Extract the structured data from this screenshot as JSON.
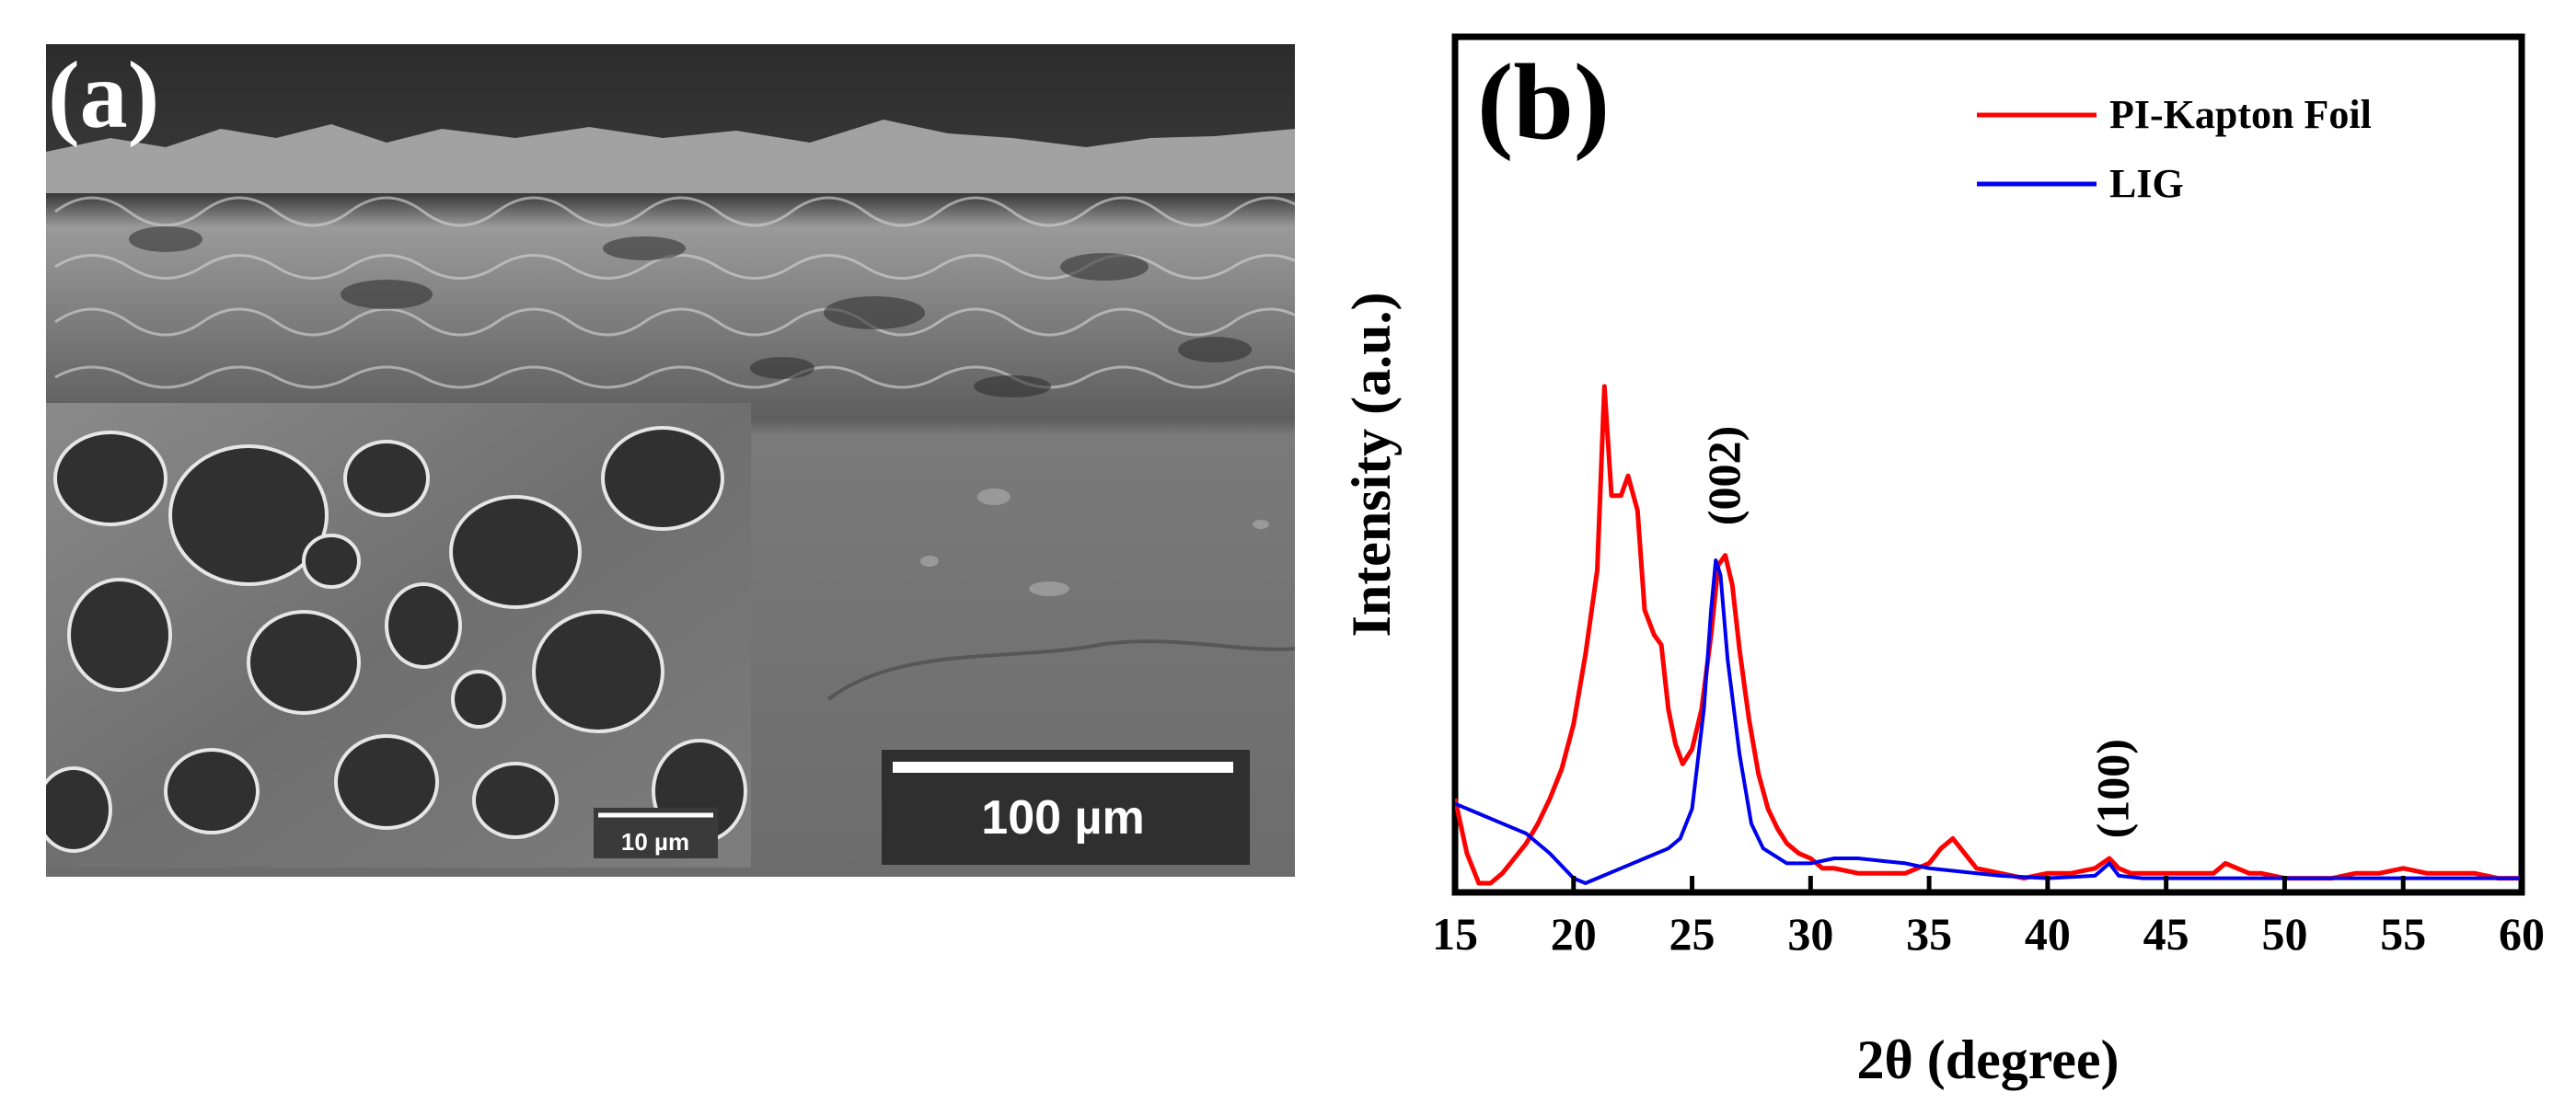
{
  "panel_a": {
    "label": "(a)",
    "scale_bar_main": "100 µm",
    "scale_bar_inset": "10 µm"
  },
  "chart_data": {
    "type": "line",
    "panel_label": "(b)",
    "title": "",
    "xlabel": "2θ (degree)",
    "ylabel": "Intensity (a.u.)",
    "xlim": [
      15,
      60
    ],
    "ylim": [
      0,
      1
    ],
    "xticks": [
      15,
      20,
      25,
      30,
      35,
      40,
      45,
      50,
      55,
      60
    ],
    "yticks": [],
    "grid": false,
    "legend": "top-right",
    "series": [
      {
        "name": "PI-Kapton Foil",
        "color": "#ff0000",
        "x": [
          15,
          15.5,
          16,
          16.5,
          17,
          17.5,
          18,
          18.5,
          19,
          19.5,
          20,
          20.5,
          21,
          21.3,
          21.6,
          22,
          22.3,
          22.7,
          23,
          23.4,
          23.7,
          24,
          24.3,
          24.6,
          25,
          25.4,
          25.8,
          26.1,
          26.4,
          26.7,
          27,
          27.4,
          27.8,
          28.2,
          28.6,
          29,
          29.5,
          30,
          30.5,
          31,
          32,
          33,
          34,
          35,
          35.5,
          36,
          36.5,
          37,
          38,
          39,
          40,
          41,
          42,
          42.6,
          43,
          43.5,
          44,
          45,
          46,
          47,
          47.5,
          48,
          48.5,
          49,
          50,
          51,
          52,
          53,
          54,
          55,
          56,
          57,
          58,
          59,
          60
        ],
        "y": [
          0.17,
          0.06,
          0.0,
          0.0,
          0.02,
          0.05,
          0.08,
          0.12,
          0.17,
          0.23,
          0.32,
          0.46,
          0.63,
          1.0,
          0.78,
          0.78,
          0.82,
          0.75,
          0.55,
          0.5,
          0.48,
          0.35,
          0.28,
          0.24,
          0.27,
          0.35,
          0.5,
          0.64,
          0.66,
          0.6,
          0.47,
          0.33,
          0.22,
          0.15,
          0.11,
          0.08,
          0.06,
          0.05,
          0.03,
          0.03,
          0.02,
          0.02,
          0.02,
          0.04,
          0.07,
          0.09,
          0.06,
          0.03,
          0.02,
          0.01,
          0.02,
          0.02,
          0.03,
          0.05,
          0.03,
          0.02,
          0.02,
          0.02,
          0.02,
          0.02,
          0.04,
          0.03,
          0.02,
          0.02,
          0.01,
          0.01,
          0.01,
          0.02,
          0.02,
          0.03,
          0.02,
          0.02,
          0.02,
          0.01,
          0.01
        ]
      },
      {
        "name": "LIG",
        "color": "#0000ee",
        "x": [
          15,
          16,
          17,
          18,
          19,
          20,
          20.5,
          21,
          22,
          23,
          24,
          24.5,
          25,
          25.5,
          25.8,
          26.0,
          26.2,
          26.5,
          27,
          27.5,
          28,
          29,
          30,
          31,
          32,
          33,
          34,
          35,
          36,
          38,
          40,
          42,
          42.6,
          43,
          44,
          46,
          48,
          50,
          52,
          55,
          58,
          60
        ],
        "y": [
          0.16,
          0.14,
          0.12,
          0.1,
          0.06,
          0.01,
          0.0,
          0.01,
          0.03,
          0.05,
          0.07,
          0.09,
          0.15,
          0.35,
          0.55,
          0.65,
          0.62,
          0.45,
          0.26,
          0.12,
          0.07,
          0.04,
          0.04,
          0.05,
          0.05,
          0.045,
          0.04,
          0.03,
          0.025,
          0.015,
          0.01,
          0.015,
          0.04,
          0.015,
          0.01,
          0.01,
          0.01,
          0.01,
          0.01,
          0.01,
          0.01,
          0.01
        ]
      }
    ],
    "annotations": [
      {
        "text": "(002)",
        "x": 26.3,
        "y": 0.72,
        "rotation": -90
      },
      {
        "text": "(100)",
        "x": 42.7,
        "y": 0.09,
        "rotation": -90
      }
    ]
  }
}
